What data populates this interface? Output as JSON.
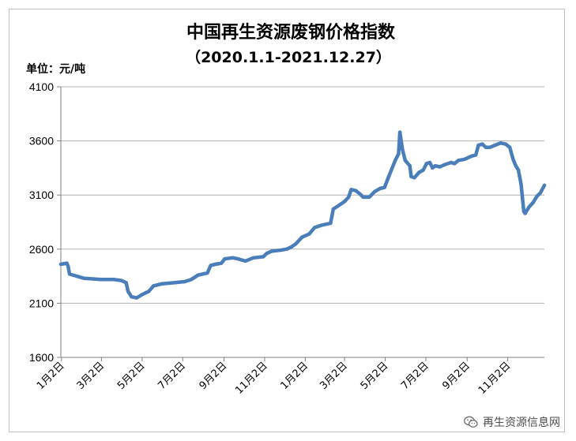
{
  "chart_data": {
    "type": "line",
    "title": "中国再生资源废钢价格指数",
    "subtitle": "（2020.1.1-2021.12.27）",
    "unit_label": "单位：元/吨",
    "ylim": [
      1600,
      4100
    ],
    "yticks": [
      1600,
      2100,
      2600,
      3100,
      3600,
      4100
    ],
    "xlim": [
      "2020-01-01",
      "2021-12-27"
    ],
    "xticks": [
      {
        "date": "2020-01-02",
        "label": "1月2日"
      },
      {
        "date": "2020-03-02",
        "label": "3月2日"
      },
      {
        "date": "2020-05-02",
        "label": "5月2日"
      },
      {
        "date": "2020-07-02",
        "label": "7月2日"
      },
      {
        "date": "2020-09-02",
        "label": "9月2日"
      },
      {
        "date": "2020-11-02",
        "label": "11月2日"
      },
      {
        "date": "2021-01-02",
        "label": "1月2日"
      },
      {
        "date": "2021-03-02",
        "label": "3月2日"
      },
      {
        "date": "2021-05-02",
        "label": "5月2日"
      },
      {
        "date": "2021-07-02",
        "label": "7月2日"
      },
      {
        "date": "2021-09-02",
        "label": "9月2日"
      },
      {
        "date": "2021-11-02",
        "label": "11月2日"
      }
    ],
    "grid": true,
    "legend": "none",
    "series": [
      {
        "color": "#4a7ebb",
        "points": [
          [
            "2020-01-01",
            2460
          ],
          [
            "2020-01-10",
            2470
          ],
          [
            "2020-01-12",
            2440
          ],
          [
            "2020-01-14",
            2370
          ],
          [
            "2020-01-25",
            2350
          ],
          [
            "2020-02-05",
            2330
          ],
          [
            "2020-03-01",
            2320
          ],
          [
            "2020-03-20",
            2320
          ],
          [
            "2020-04-01",
            2310
          ],
          [
            "2020-04-08",
            2290
          ],
          [
            "2020-04-11",
            2210
          ],
          [
            "2020-04-16",
            2160
          ],
          [
            "2020-04-24",
            2150
          ],
          [
            "2020-05-02",
            2180
          ],
          [
            "2020-05-12",
            2210
          ],
          [
            "2020-05-19",
            2260
          ],
          [
            "2020-06-01",
            2280
          ],
          [
            "2020-06-20",
            2290
          ],
          [
            "2020-07-05",
            2300
          ],
          [
            "2020-07-15",
            2320
          ],
          [
            "2020-07-25",
            2360
          ],
          [
            "2020-08-08",
            2380
          ],
          [
            "2020-08-13",
            2450
          ],
          [
            "2020-08-20",
            2460
          ],
          [
            "2020-08-29",
            2470
          ],
          [
            "2020-09-03",
            2510
          ],
          [
            "2020-09-15",
            2520
          ],
          [
            "2020-09-23",
            2510
          ],
          [
            "2020-10-04",
            2490
          ],
          [
            "2020-10-16",
            2520
          ],
          [
            "2020-10-31",
            2530
          ],
          [
            "2020-11-05",
            2560
          ],
          [
            "2020-11-12",
            2580
          ],
          [
            "2020-11-25",
            2590
          ],
          [
            "2020-12-05",
            2600
          ],
          [
            "2020-12-12",
            2620
          ],
          [
            "2020-12-19",
            2650
          ],
          [
            "2020-12-28",
            2710
          ],
          [
            "2021-01-08",
            2740
          ],
          [
            "2021-01-16",
            2800
          ],
          [
            "2021-01-26",
            2820
          ],
          [
            "2021-02-09",
            2840
          ],
          [
            "2021-02-13",
            2970
          ],
          [
            "2021-02-23",
            3010
          ],
          [
            "2021-03-02",
            3040
          ],
          [
            "2021-03-08",
            3080
          ],
          [
            "2021-03-12",
            3150
          ],
          [
            "2021-03-19",
            3140
          ],
          [
            "2021-03-25",
            3110
          ],
          [
            "2021-03-30",
            3080
          ],
          [
            "2021-04-08",
            3080
          ],
          [
            "2021-04-16",
            3130
          ],
          [
            "2021-04-24",
            3160
          ],
          [
            "2021-05-01",
            3170
          ],
          [
            "2021-05-06",
            3250
          ],
          [
            "2021-05-17",
            3420
          ],
          [
            "2021-05-22",
            3480
          ],
          [
            "2021-05-24",
            3680
          ],
          [
            "2021-05-28",
            3520
          ],
          [
            "2021-06-01",
            3420
          ],
          [
            "2021-06-08",
            3370
          ],
          [
            "2021-06-10",
            3270
          ],
          [
            "2021-06-15",
            3260
          ],
          [
            "2021-06-22",
            3310
          ],
          [
            "2021-06-28",
            3330
          ],
          [
            "2021-07-03",
            3390
          ],
          [
            "2021-07-08",
            3400
          ],
          [
            "2021-07-12",
            3350
          ],
          [
            "2021-07-16",
            3370
          ],
          [
            "2021-07-23",
            3360
          ],
          [
            "2021-07-30",
            3380
          ],
          [
            "2021-08-09",
            3400
          ],
          [
            "2021-08-14",
            3390
          ],
          [
            "2021-08-20",
            3420
          ],
          [
            "2021-08-29",
            3430
          ],
          [
            "2021-09-09",
            3460
          ],
          [
            "2021-09-15",
            3470
          ],
          [
            "2021-09-19",
            3560
          ],
          [
            "2021-09-25",
            3570
          ],
          [
            "2021-09-30",
            3540
          ],
          [
            "2021-10-06",
            3540
          ],
          [
            "2021-10-14",
            3560
          ],
          [
            "2021-10-22",
            3580
          ],
          [
            "2021-10-30",
            3570
          ],
          [
            "2021-11-05",
            3540
          ],
          [
            "2021-11-10",
            3430
          ],
          [
            "2021-11-14",
            3370
          ],
          [
            "2021-11-18",
            3330
          ],
          [
            "2021-11-22",
            3200
          ],
          [
            "2021-11-26",
            2950
          ],
          [
            "2021-11-28",
            2930
          ],
          [
            "2021-12-04",
            2990
          ],
          [
            "2021-12-10",
            3030
          ],
          [
            "2021-12-16",
            3090
          ],
          [
            "2021-12-21",
            3120
          ],
          [
            "2021-12-27",
            3190
          ]
        ]
      }
    ]
  },
  "watermark": {
    "text": "再生资源信息网",
    "icon": "wechat-icon"
  }
}
